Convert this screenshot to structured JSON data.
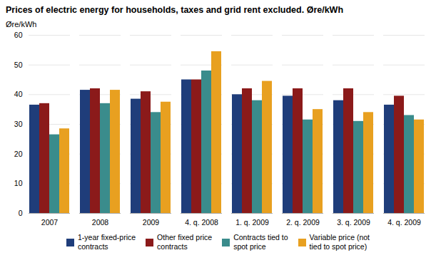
{
  "chart_data": {
    "type": "bar",
    "title": "Prices of electric energy for households, taxes and grid rent excluded. Øre/kWh",
    "ylabel": "Øre/kWh",
    "categories": [
      "2007",
      "2008",
      "2009",
      "4. q. 2008",
      "1. q. 2009",
      "2. q. 2009",
      "3. q. 2009",
      "4. q. 2009"
    ],
    "series": [
      {
        "name": "1-year fixed-price\ncontracts",
        "color": "#1f3d7a",
        "values": [
          36.5,
          41.5,
          38.5,
          45.0,
          40.0,
          39.5,
          38.0,
          36.5
        ]
      },
      {
        "name": "Other fixed price\ncontracts",
        "color": "#8b1a1a",
        "values": [
          37.0,
          42.0,
          41.0,
          45.0,
          42.0,
          42.0,
          42.0,
          39.5
        ]
      },
      {
        "name": "Contracts tied to\nspot price",
        "color": "#3a8c8c",
        "values": [
          26.5,
          37.0,
          34.0,
          48.0,
          38.0,
          31.5,
          31.0,
          33.0
        ]
      },
      {
        "name": "Variable price (not\ntied to spot price)",
        "color": "#e8a020",
        "values": [
          28.5,
          41.5,
          37.5,
          54.5,
          44.5,
          35.0,
          34.0,
          31.5
        ]
      }
    ],
    "ylim": [
      0,
      60
    ],
    "yticks": [
      0,
      10,
      20,
      30,
      40,
      50,
      60
    ],
    "grid": true,
    "legend": "bottom"
  }
}
